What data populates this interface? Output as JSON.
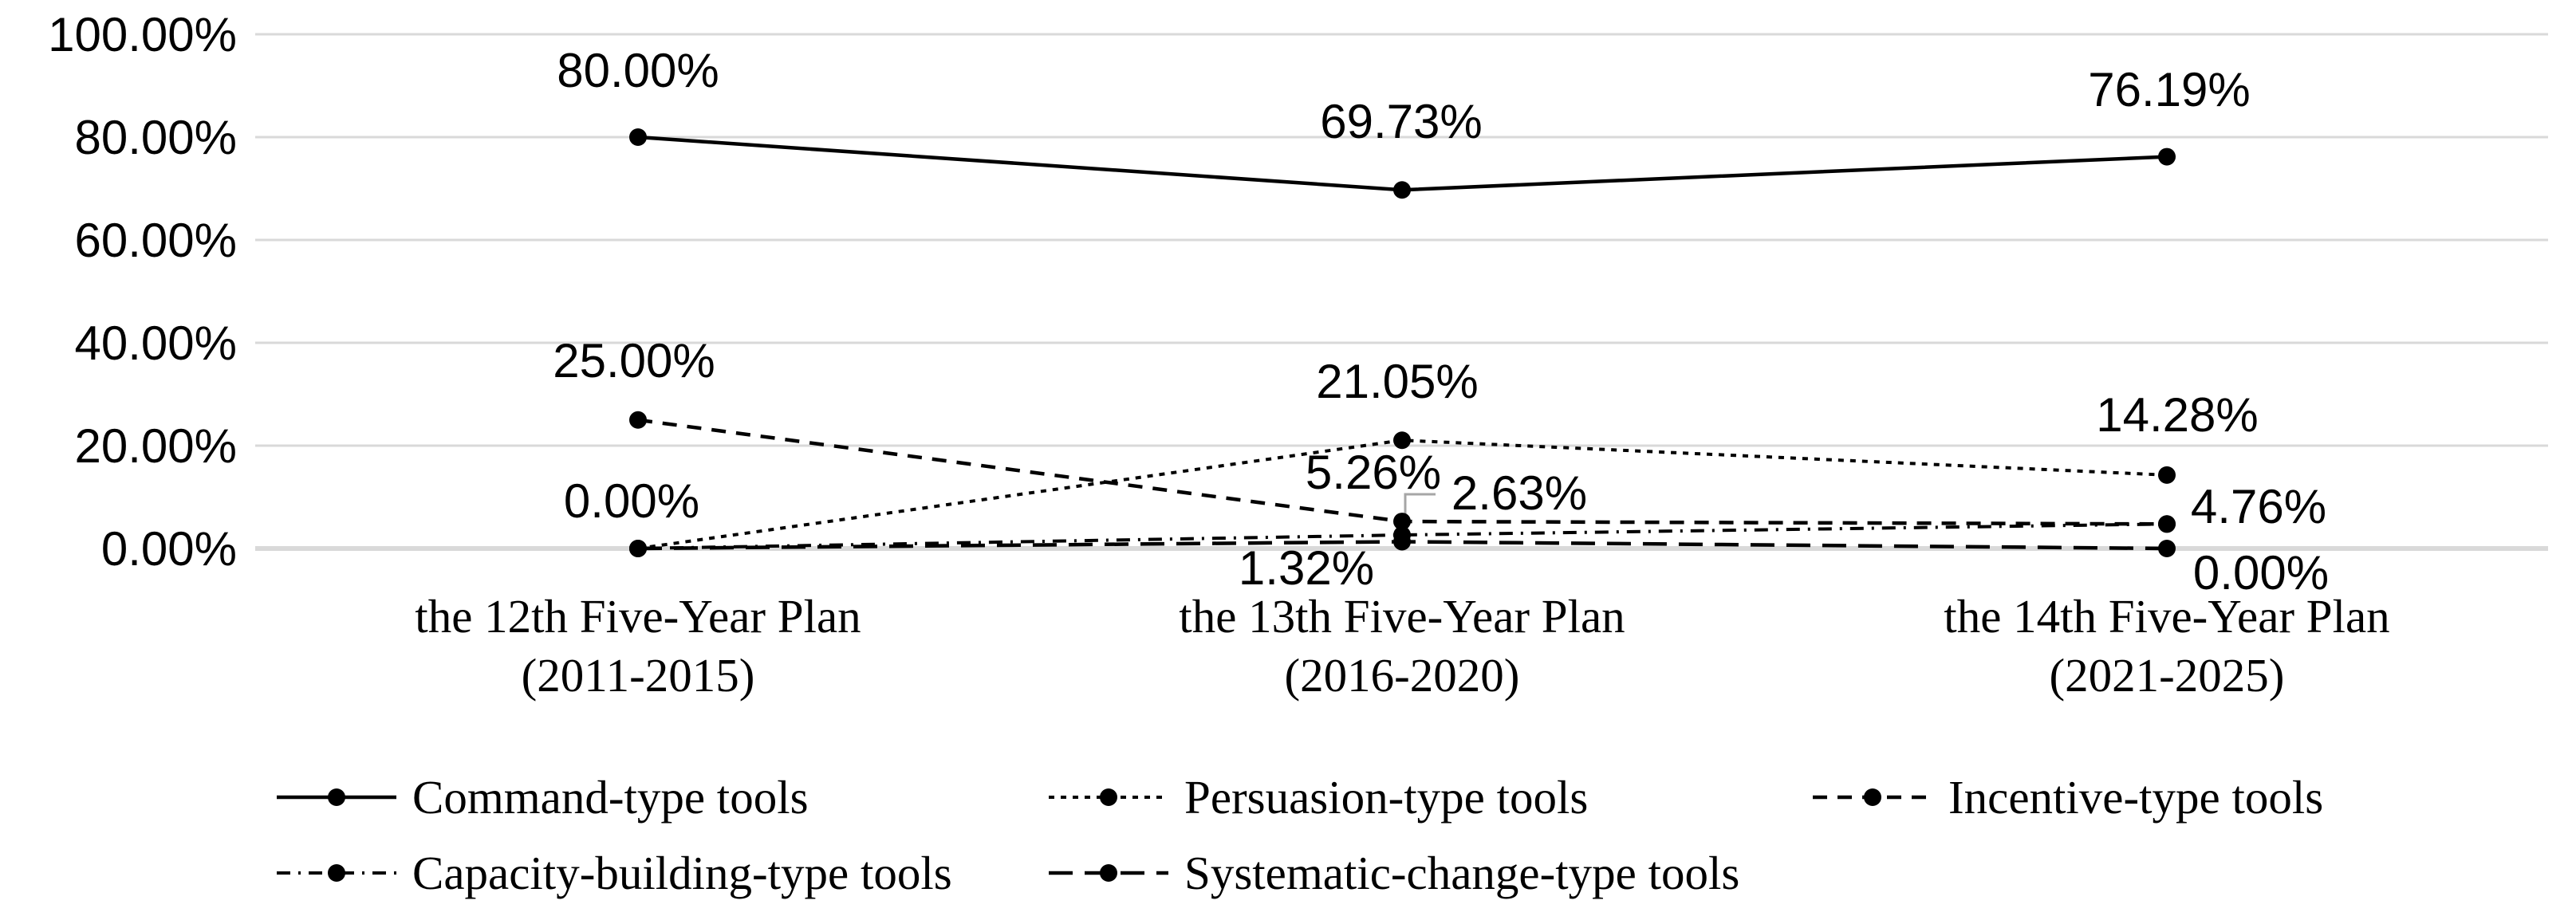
{
  "chart_data": {
    "type": "line",
    "title": "",
    "xlabel": "",
    "ylabel": "",
    "grid": "horizontal",
    "legend_position": "bottom",
    "y_axis": {
      "min": 0,
      "max": 100,
      "format": "percent",
      "ticks": [
        {
          "label": "100.00%",
          "value": 100
        },
        {
          "label": "80.00%",
          "value": 80
        },
        {
          "label": "60.00%",
          "value": 60
        },
        {
          "label": "40.00%",
          "value": 40
        },
        {
          "label": "20.00%",
          "value": 20
        },
        {
          "label": "0.00%",
          "value": 0
        }
      ]
    },
    "categories": [
      {
        "line1": "the 12th Five-Year Plan",
        "line2": "(2011-2015)"
      },
      {
        "line1": "the 13th Five-Year Plan",
        "line2": "(2016-2020)"
      },
      {
        "line1": "the 14th Five-Year Plan",
        "line2": "(2021-2025)"
      }
    ],
    "series": [
      {
        "name": "Command-type tools",
        "style": "solid",
        "values": [
          80.0,
          69.73,
          76.19
        ],
        "labels": [
          "80.00%",
          "69.73%",
          "76.19%"
        ]
      },
      {
        "name": "Persuasion-type tools",
        "style": "dot",
        "values": [
          0.0,
          21.05,
          14.28
        ],
        "labels": [
          null,
          "21.05%",
          "14.28%"
        ]
      },
      {
        "name": "Incentive-type tools",
        "style": "dash",
        "values": [
          25.0,
          5.26,
          4.76
        ],
        "labels": [
          "25.00%",
          "5.26%",
          null
        ]
      },
      {
        "name": "Capacity-building-type tools",
        "style": "dashdot",
        "values": [
          0.0,
          2.63,
          4.76
        ],
        "labels": [
          null,
          "2.63%",
          "4.76%"
        ]
      },
      {
        "name": "Systematic-change-type tools",
        "style": "longdash",
        "values": [
          0.0,
          1.32,
          0.0
        ],
        "labels": [
          "0.00%",
          "1.32%",
          "0.00%"
        ]
      }
    ],
    "colors": {
      "series_line": "#000000",
      "marker": "#000000",
      "gridline": "#d9d9d9",
      "axis_line": "#d9d9d9",
      "leader_line": "#a6a6a6",
      "text": "#000000",
      "background": "#ffffff"
    }
  }
}
